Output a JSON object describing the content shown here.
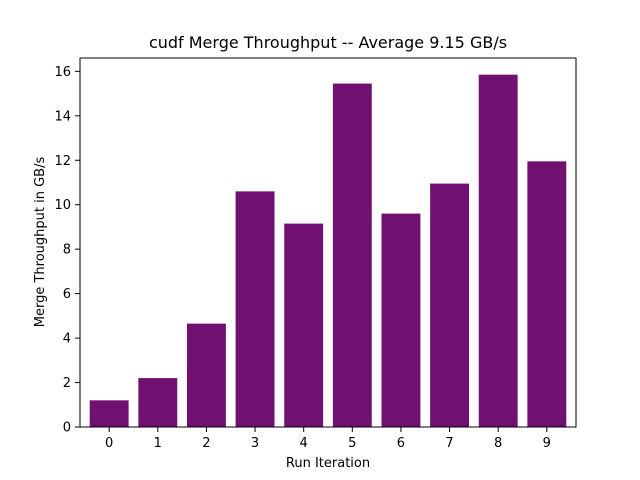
{
  "chart_data": {
    "type": "bar",
    "title": "cudf Merge Throughput -- Average 9.15 GB/s",
    "xlabel": "Run Iteration",
    "ylabel": "Merge Throughput in GB/s",
    "categories": [
      "0",
      "1",
      "2",
      "3",
      "4",
      "5",
      "6",
      "7",
      "8",
      "9"
    ],
    "values": [
      1.2,
      2.2,
      4.65,
      10.6,
      9.15,
      15.45,
      9.6,
      10.95,
      15.85,
      11.95
    ],
    "ylim": [
      0,
      16.6
    ],
    "yticks": [
      "0",
      "2",
      "4",
      "6",
      "8",
      "10",
      "12",
      "14",
      "16"
    ],
    "bar_color": "#701070",
    "grid": false
  }
}
